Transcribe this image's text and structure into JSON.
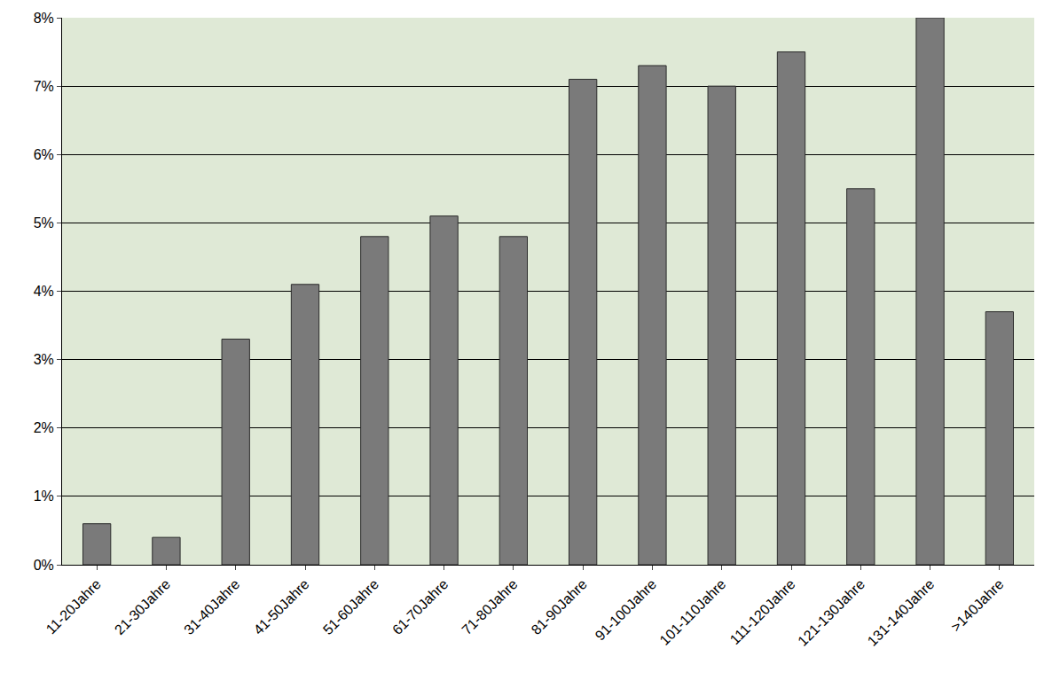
{
  "chart_data": {
    "type": "bar",
    "categories": [
      "11-20Jahre",
      "21-30Jahre",
      "31-40Jahre",
      "41-50Jahre",
      "51-60Jahre",
      "61-70Jahre",
      "71-80Jahre",
      "81-90Jahre",
      "91-100Jahre",
      "101-110Jahre",
      "111-120Jahre",
      "121-130Jahre",
      "131-140Jahre",
      ">140Jahre"
    ],
    "values": [
      0.6,
      0.4,
      3.3,
      4.1,
      4.8,
      5.1,
      4.8,
      7.1,
      7.3,
      7.0,
      7.5,
      5.5,
      8.0,
      3.7
    ],
    "color": "#7a7a7a",
    "ylim": [
      0,
      8
    ],
    "yticks": [
      {
        "value": 0,
        "label": "0%"
      },
      {
        "value": 1,
        "label": "1%"
      },
      {
        "value": 2,
        "label": "2%"
      },
      {
        "value": 3,
        "label": "3%"
      },
      {
        "value": 4,
        "label": "4%"
      },
      {
        "value": 5,
        "label": "5%"
      },
      {
        "value": 6,
        "label": "6%"
      },
      {
        "value": 7,
        "label": "7%"
      },
      {
        "value": 8,
        "label": "8%"
      }
    ],
    "grid": true
  }
}
